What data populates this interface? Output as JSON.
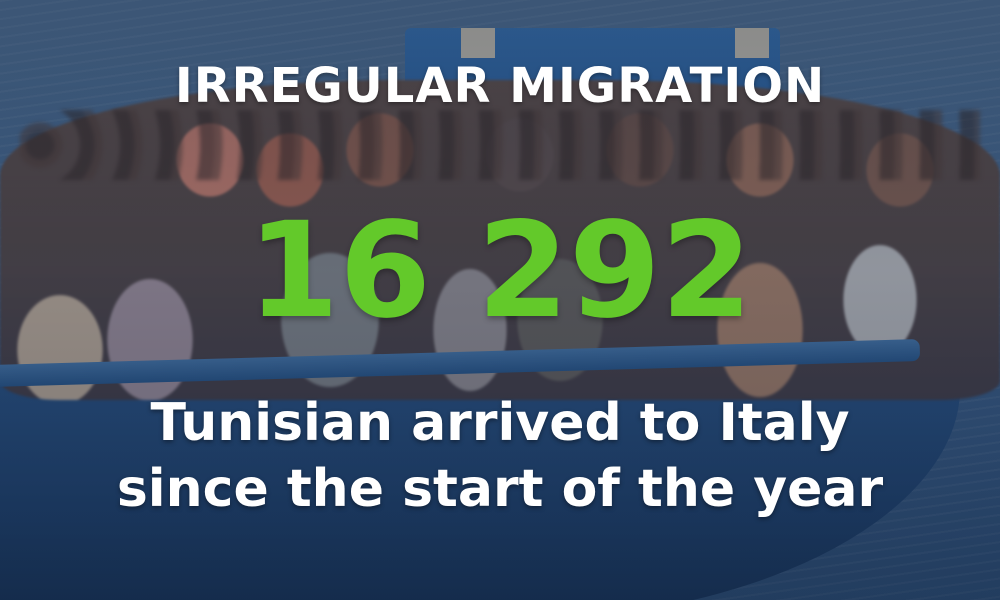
{
  "headline": "IRREGULAR MIGRATION",
  "figure": "16 292",
  "caption": {
    "line1": "Tunisian arrived to Italy",
    "line2": "since the start of the year"
  },
  "colors": {
    "figure": "#63c92a",
    "text": "#ffffff"
  },
  "background": "migrant-boat-photo"
}
